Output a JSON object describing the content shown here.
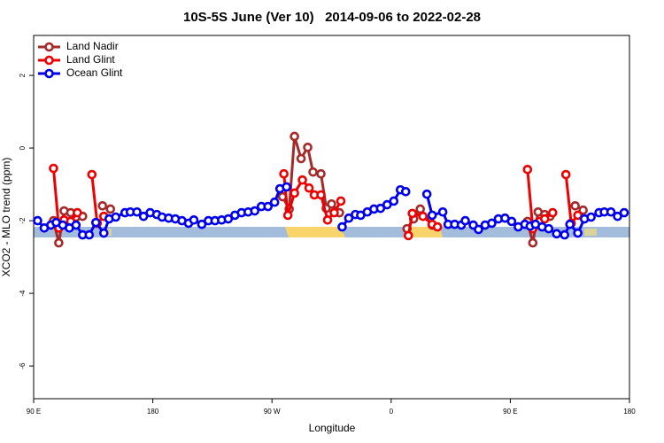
{
  "chart_data": {
    "type": "line",
    "title": "10S-5S June (Ver 10)   2014-09-06 to 2022-02-28",
    "xlabel": "Longitude",
    "ylabel": "XCO2 - MLO trend (ppm)",
    "xlim": [
      90,
      540
    ],
    "ylim": [
      -6.9,
      3.1
    ],
    "xticks": [
      {
        "value": 90,
        "label": "90 E"
      },
      {
        "value": 180,
        "label": "180"
      },
      {
        "value": 270,
        "label": "90 W"
      },
      {
        "value": 360,
        "label": "0"
      },
      {
        "value": 450,
        "label": "90 E"
      },
      {
        "value": 540,
        "label": "180"
      }
    ],
    "yticks": [
      2,
      0,
      -2,
      -4,
      -6
    ],
    "legend": "top-left",
    "series": [
      {
        "name": "Land Nadir",
        "color": "#a52a2a",
        "x": [
          105,
          109,
          113,
          118,
          122,
          127,
          null,
          142,
          148,
          null,
          278,
          283,
          287,
          292,
          297,
          301,
          307,
          311,
          315,
          321,
          null,
          372,
          377,
          382,
          391,
          null,
          463,
          467,
          471,
          476,
          480,
          null,
          499,
          505
        ],
        "values": [
          -2.0,
          -2.61,
          -1.73,
          -1.78,
          -1.9,
          -1.88,
          null,
          -1.59,
          -1.68,
          null,
          -1.34,
          -1.68,
          0.32,
          -0.29,
          0.02,
          -0.66,
          -0.71,
          -1.66,
          -1.54,
          -1.78,
          null,
          -2.22,
          -1.95,
          -1.68,
          -2.12,
          null,
          -2.02,
          -2.61,
          -1.76,
          -1.83,
          -1.88,
          null,
          -1.59,
          -1.71
        ]
      },
      {
        "name": "Land Glint",
        "color": "#ee0000",
        "x": [
          105,
          109,
          113,
          118,
          123,
          null,
          134,
          138,
          143,
          null,
          279,
          282,
          287,
          293,
          298,
          302,
          307,
          312,
          317,
          322,
          null,
          373,
          376,
          384,
          391,
          395,
          null,
          463,
          467,
          472,
          476,
          482,
          null,
          492,
          496,
          501
        ],
        "values": [
          -0.56,
          -2.2,
          -1.98,
          -2.02,
          -1.78,
          null,
          -0.73,
          -2.07,
          -1.88,
          null,
          -0.71,
          -1.85,
          -1.24,
          -0.88,
          -1.1,
          -1.29,
          -1.29,
          -1.98,
          -1.78,
          -1.46,
          null,
          -2.41,
          -1.8,
          -1.88,
          -2.1,
          -2.17,
          null,
          -0.59,
          -2.22,
          -2.02,
          -1.95,
          -1.78,
          null,
          -0.73,
          -2.07,
          -1.85
        ]
      },
      {
        "name": "Ocean Glint",
        "color": "#0000ee",
        "x": [
          93,
          98,
          103,
          107,
          112,
          117,
          122,
          127,
          132,
          137,
          143,
          147,
          152,
          159,
          163,
          168,
          173,
          178,
          183,
          187,
          192,
          197,
          202,
          207,
          211,
          217,
          222,
          227,
          232,
          237,
          242,
          247,
          252,
          257,
          262,
          267,
          272,
          276,
          281,
          null,
          323,
          328,
          333,
          337,
          342,
          347,
          352,
          357,
          362,
          367,
          371,
          null,
          387,
          391,
          399,
          403,
          408,
          413,
          416,
          422,
          426,
          431,
          436,
          441,
          446,
          451,
          456,
          461,
          465,
          469,
          474,
          479,
          485,
          491,
          495,
          501,
          506,
          511,
          517,
          521,
          526,
          531,
          536
        ],
        "values": [
          -2.0,
          -2.2,
          -2.12,
          -2.05,
          -2.12,
          -2.2,
          -2.12,
          -2.39,
          -2.39,
          -2.05,
          -2.34,
          -1.95,
          -1.9,
          -1.78,
          -1.76,
          -1.76,
          -1.88,
          -1.78,
          -1.83,
          -1.9,
          -1.93,
          -1.95,
          -2.0,
          -2.07,
          -1.98,
          -2.1,
          -2.0,
          -2.0,
          -1.98,
          -1.95,
          -1.85,
          -1.78,
          -1.76,
          -1.73,
          -1.61,
          -1.61,
          -1.49,
          -1.12,
          -1.07,
          null,
          -2.17,
          -1.93,
          -1.83,
          -1.85,
          -1.76,
          -1.68,
          -1.66,
          -1.56,
          -1.46,
          -1.15,
          -1.2,
          null,
          -1.27,
          -1.85,
          -1.76,
          -2.1,
          -2.1,
          -2.12,
          -2.0,
          -2.12,
          -2.24,
          -2.12,
          -2.07,
          -1.95,
          -1.93,
          -2.02,
          -2.17,
          -2.1,
          -2.15,
          -2.1,
          -2.17,
          -2.22,
          -2.36,
          -2.39,
          -2.1,
          -2.34,
          -1.95,
          -1.9,
          -1.78,
          -1.76,
          -1.76,
          -1.88,
          -1.78
        ]
      }
    ]
  }
}
